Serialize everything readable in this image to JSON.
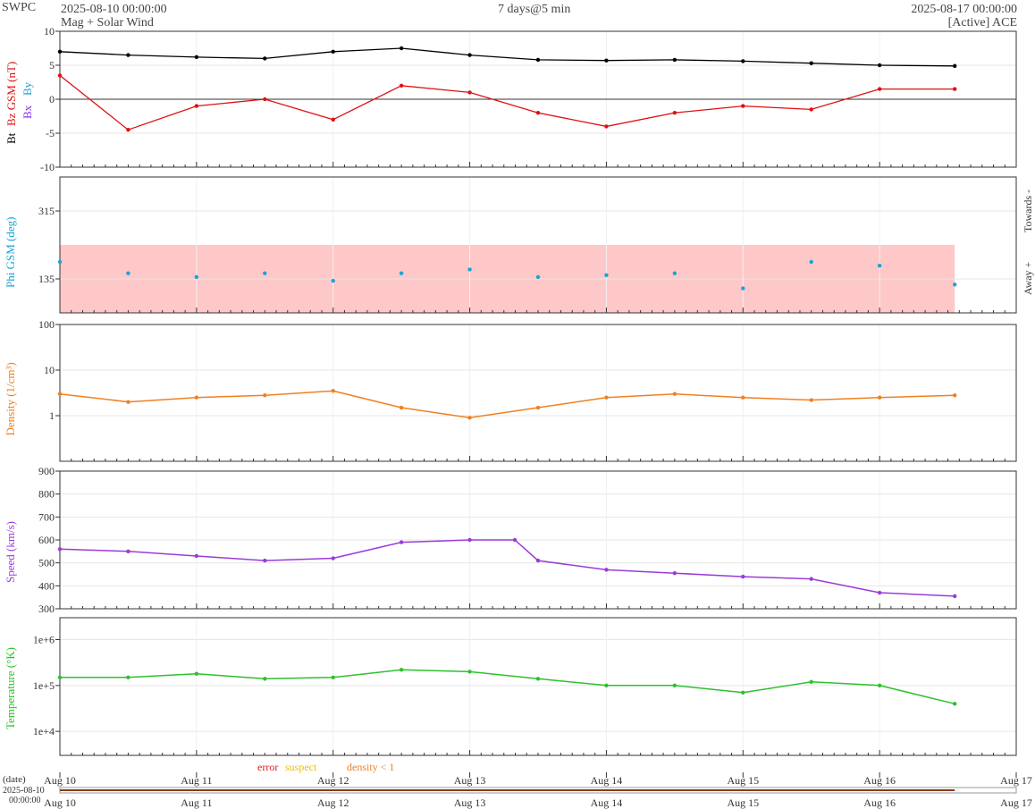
{
  "header": {
    "brand": "SWPC",
    "start": "2025-08-10 00:00:00",
    "subtitle": "Mag + Solar Wind",
    "cadence": "7 days@5 min",
    "end": "2025-08-17 00:00:00",
    "source": "[Active] ACE"
  },
  "legend": {
    "error": "error",
    "suspect": "suspect",
    "density": "density < 1",
    "date_label": "(date)",
    "range_start": "2025-08-10",
    "range_time": "00:00:00"
  },
  "colors": {
    "bt": "#000000",
    "bz": "#e01010",
    "bx": "#8a2be2",
    "by": "#1aa3d6",
    "phi": "#1aa3d6",
    "phi_band": "#ffc8c8",
    "density": "#f08020",
    "speed": "#9a3cd8",
    "temperature": "#2ec02e",
    "error": "#e02020",
    "suspect": "#e8c000",
    "density_flag": "#f08020"
  },
  "chart_data": [
    {
      "type": "line",
      "name": "mag",
      "ylabel_parts": [
        "Bt",
        "Bz GSM (nT)",
        "Bx",
        "By"
      ],
      "ylim": [
        -10,
        10
      ],
      "yticks": [
        -10,
        -5,
        0,
        5,
        10
      ],
      "scale": "linear",
      "grid": true,
      "x_days": [
        0,
        0.5,
        1,
        1.5,
        2,
        2.5,
        3,
        3.5,
        4,
        4.5,
        5,
        5.5,
        6,
        6.55
      ],
      "series": [
        {
          "name": "Bt",
          "values": [
            7.0,
            6.5,
            6.2,
            6.0,
            7.0,
            7.5,
            6.5,
            5.8,
            5.7,
            5.8,
            5.6,
            5.3,
            5.0,
            4.9
          ]
        },
        {
          "name": "Bz",
          "values": [
            3.5,
            -4.5,
            -1.0,
            0.0,
            -3.0,
            2.0,
            1.0,
            -2.0,
            -4.0,
            -2.0,
            -1.0,
            -1.5,
            1.5,
            1.5
          ]
        }
      ]
    },
    {
      "type": "scatter",
      "name": "phi",
      "ylabel": "Phi GSM (deg)",
      "right_labels": [
        "Towards -",
        "Away +"
      ],
      "ylim": [
        45,
        405
      ],
      "yticks": [
        135,
        315
      ],
      "scale": "linear",
      "band": [
        45,
        225
      ],
      "x_days": [
        0,
        0.5,
        1,
        1.5,
        2,
        2.5,
        3,
        3.5,
        4,
        4.5,
        5,
        5.5,
        6,
        6.55
      ],
      "values": [
        180,
        150,
        140,
        150,
        130,
        150,
        160,
        140,
        145,
        150,
        110,
        180,
        170,
        120
      ]
    },
    {
      "type": "line",
      "name": "density",
      "ylabel": "Density (1/cm³)",
      "ylim": [
        0.1,
        100
      ],
      "yticks": [
        1,
        10,
        100
      ],
      "scale": "log",
      "x_days": [
        0,
        0.5,
        1,
        1.5,
        2,
        2.5,
        3,
        3.5,
        4,
        4.5,
        5,
        5.5,
        6,
        6.55
      ],
      "values": [
        3,
        2,
        2.5,
        2.8,
        3.5,
        1.5,
        0.9,
        1.5,
        2.5,
        3,
        2.5,
        2.2,
        2.5,
        2.8
      ]
    },
    {
      "type": "line",
      "name": "speed",
      "ylabel": "Speed (km/s)",
      "ylim": [
        300,
        900
      ],
      "yticks": [
        300,
        400,
        500,
        600,
        700,
        800,
        900
      ],
      "scale": "linear",
      "x_days": [
        0,
        0.5,
        1,
        1.5,
        2,
        2.5,
        3,
        3.33,
        3.5,
        4,
        4.5,
        5,
        5.5,
        6,
        6.55
      ],
      "values": [
        560,
        550,
        530,
        510,
        520,
        590,
        600,
        600,
        510,
        470,
        455,
        440,
        430,
        370,
        355
      ]
    },
    {
      "type": "line",
      "name": "temperature",
      "ylabel": "Temperature (°K)",
      "ylim": [
        3000,
        3000000
      ],
      "yticks": [
        10000,
        100000,
        1000000
      ],
      "yticklabels": [
        "1e+4",
        "1e+5",
        "1e+6"
      ],
      "scale": "log",
      "x_days": [
        0,
        0.5,
        1,
        1.5,
        2,
        2.5,
        3,
        3.5,
        4,
        4.5,
        5,
        5.5,
        6,
        6.55
      ],
      "values": [
        150000,
        150000,
        180000,
        140000,
        150000,
        220000,
        200000,
        140000,
        100000,
        100000,
        70000,
        120000,
        100000,
        40000
      ]
    }
  ],
  "x_axis": {
    "tick_labels": [
      "Aug 10",
      "Aug 11",
      "Aug 12",
      "Aug 13",
      "Aug 14",
      "Aug 15",
      "Aug 16",
      "Aug 17"
    ],
    "range_days": [
      0,
      7
    ]
  }
}
